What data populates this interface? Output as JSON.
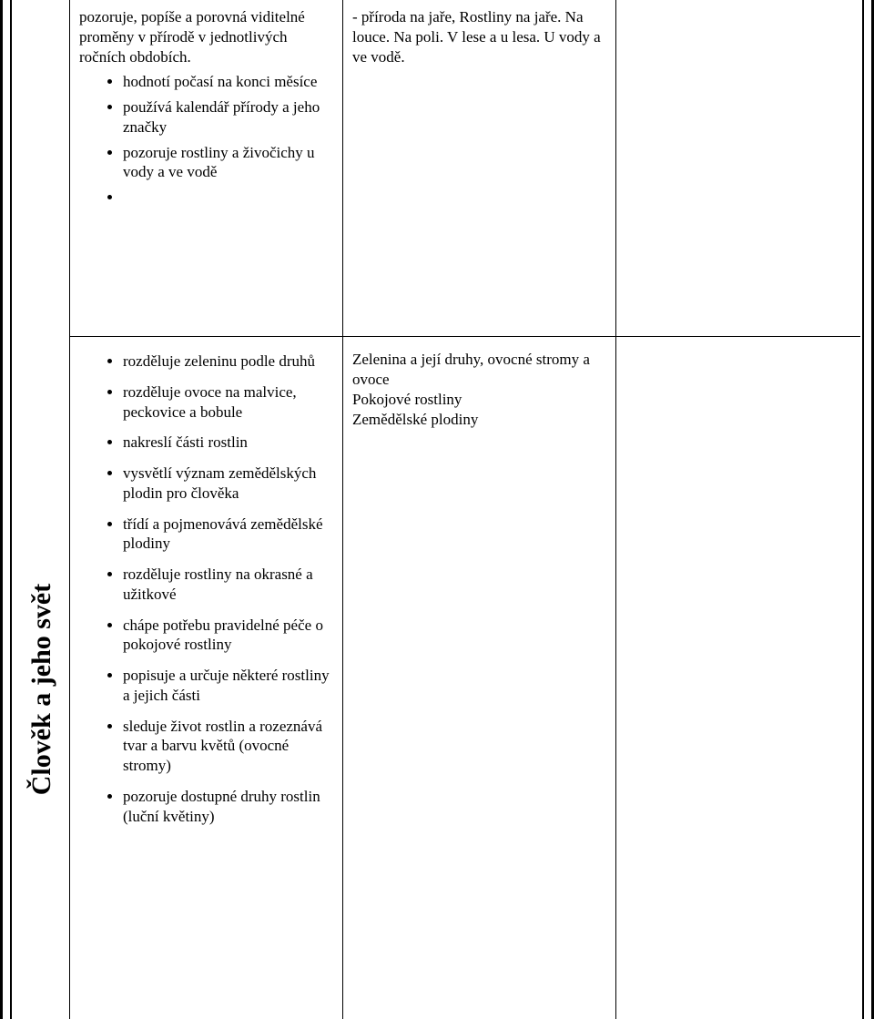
{
  "sideLabel": "Člověk a jeho svět",
  "row1": {
    "lead": "pozoruje, popíše a porovná viditelné proměny v přírodě v jednotlivých ročních obdobích.",
    "bullets": [
      "hodnotí počasí na konci měsíce",
      "používá kalendář přírody a jeho značky",
      "pozoruje rostliny a živočichy u vody a ve vodě"
    ],
    "right": "- příroda na jaře, Rostliny na jaře. Na louce. Na poli. V lese a u lesa. U vody a ve vodě."
  },
  "row2": {
    "bullets": [
      "rozděluje zeleninu podle druhů",
      "rozděluje ovoce na malvice, peckovice a bobule",
      "nakreslí části rostlin",
      "vysvětlí význam zemědělských plodin pro člověka",
      "třídí a pojmenovává zemědělské plodiny",
      "rozděluje rostliny na okrasné a užitkové",
      "chápe potřebu pravidelné péče o pokojové rostliny",
      "popisuje a určuje některé rostliny a jejich části",
      "sleduje život rostlin a rozeznává tvar a barvu květů (ovocné stromy)",
      "pozoruje dostupné druhy rostlin (luční květiny)"
    ],
    "rightLines": [
      "Zelenina a její druhy, ovocné stromy a ovoce",
      "Pokojové rostliny",
      "Zemědělské plodiny"
    ]
  }
}
